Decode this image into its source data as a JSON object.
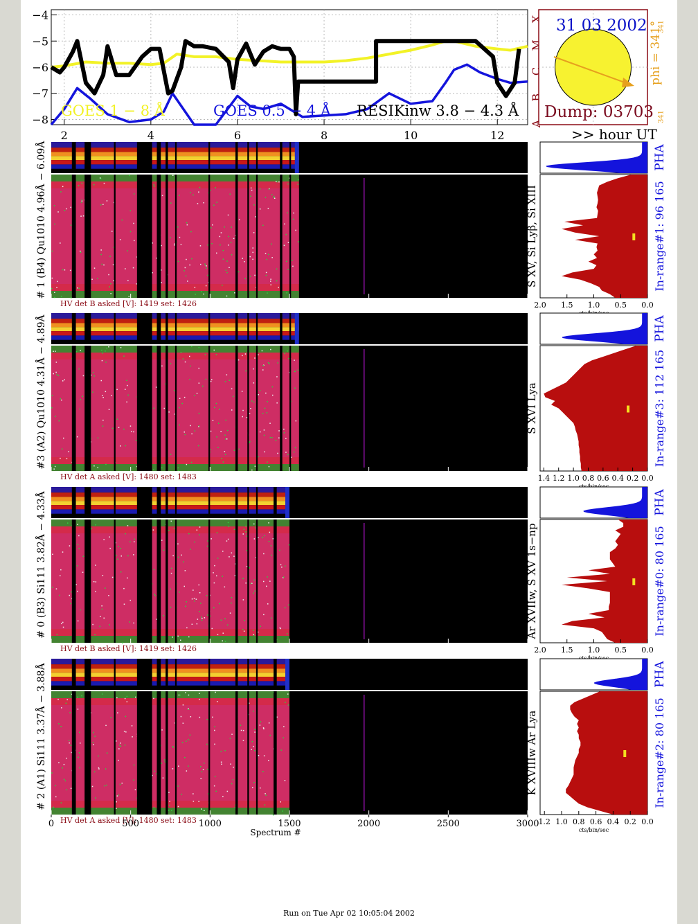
{
  "goes": {
    "date": "31 03 2002",
    "dump": "Dump: 03703",
    "phi": "phi = 341°",
    "phi_small": "341",
    "phi_small2": "341",
    "legend_long": "GOES 1 − 8 Å",
    "legend_short": "GOES 0.5 − 4 Å",
    "legend_resik": "RESIKinw 3.8 − 4.3 Å",
    "hour_label": ">> hour UT",
    "flare_classes": [
      "A",
      "B",
      "C",
      "M",
      "X"
    ],
    "colors": {
      "long": "#f2f226",
      "short": "#1414dc",
      "resik": "#000000",
      "date": "#0a12c8",
      "dump": "#7a0a1e",
      "phi": "#e6a01e",
      "class": "#8a0a14"
    }
  },
  "chart_data": [
    {
      "type": "line",
      "title": "",
      "xlabel": ">> hour UT",
      "ylabel": "",
      "xlim": [
        1.7,
        12.7
      ],
      "ylim": [
        -8.2,
        -3.8
      ],
      "xticks": [
        2,
        4,
        6,
        8,
        10,
        12
      ],
      "yticks": [
        -4,
        -5,
        -6,
        -7,
        -8
      ],
      "series": [
        {
          "name": "GOES 1 − 8 Å",
          "color": "#f2f226",
          "x": [
            1.7,
            2.0,
            2.5,
            3.0,
            3.5,
            4.0,
            4.3,
            4.6,
            5.0,
            5.5,
            6.0,
            6.5,
            7.0,
            7.5,
            8.0,
            8.5,
            9.0,
            9.5,
            10.0,
            10.5,
            10.8,
            11.0,
            11.5,
            12.0,
            12.3,
            12.7
          ],
          "y": [
            -6.0,
            -5.95,
            -5.8,
            -5.85,
            -5.85,
            -5.9,
            -5.85,
            -5.5,
            -5.6,
            -5.6,
            -5.7,
            -5.75,
            -5.8,
            -5.8,
            -5.8,
            -5.75,
            -5.65,
            -5.5,
            -5.35,
            -5.15,
            -5.0,
            -5.0,
            -5.2,
            -5.3,
            -5.35,
            -5.2
          ]
        },
        {
          "name": "GOES 0.5 − 4 Å",
          "color": "#1414dc",
          "x": [
            1.7,
            2.0,
            2.3,
            2.6,
            3.0,
            3.5,
            4.0,
            4.3,
            4.5,
            5.0,
            5.5,
            6.0,
            6.3,
            6.6,
            7.0,
            7.5,
            8.0,
            8.5,
            9.0,
            9.5,
            10.0,
            10.5,
            10.8,
            11.0,
            11.3,
            11.6,
            12.0,
            12.3,
            12.7
          ],
          "y": [
            -8.2,
            -7.6,
            -6.8,
            -7.2,
            -7.8,
            -8.1,
            -8.0,
            -7.7,
            -7.0,
            -8.2,
            -8.2,
            -7.1,
            -7.5,
            -7.6,
            -7.4,
            -7.9,
            -7.85,
            -7.8,
            -7.6,
            -7.0,
            -7.4,
            -7.3,
            -6.6,
            -6.1,
            -5.9,
            -6.2,
            -6.45,
            -6.6,
            -6.55
          ]
        },
        {
          "name": "RESIKinw 3.8 − 4.3 Å",
          "color": "#000000",
          "x": [
            1.7,
            1.9,
            2.0,
            2.2,
            2.3,
            2.5,
            2.7,
            2.9,
            3.0,
            3.2,
            3.5,
            3.8,
            4.0,
            4.2,
            4.4,
            4.5,
            4.7,
            4.8,
            5.0,
            5.2,
            5.5,
            5.8,
            5.9,
            6.0,
            6.2,
            6.4,
            6.6,
            6.8,
            7.0,
            7.2,
            7.3,
            7.35,
            7.4,
            9.2,
            9.2,
            11.0,
            11.5,
            11.7,
            11.9,
            12.0,
            12.2,
            12.4,
            12.5
          ],
          "y": [
            -6.0,
            -6.2,
            -6.0,
            -5.4,
            -5.0,
            -6.6,
            -7.0,
            -6.3,
            -5.2,
            -6.3,
            -6.3,
            -5.6,
            -5.3,
            -5.3,
            -7.0,
            -6.9,
            -6.0,
            -5.0,
            -5.2,
            -5.2,
            -5.3,
            -5.8,
            -6.8,
            -5.7,
            -5.1,
            -5.9,
            -5.4,
            -5.2,
            -5.3,
            -5.3,
            -5.6,
            -7.8,
            -6.55,
            -6.55,
            -5.0,
            -5.0,
            -5.0,
            -5.3,
            -5.6,
            -6.6,
            -7.1,
            -6.6,
            -5.3
          ]
        }
      ]
    },
    {
      "type": "heatmap",
      "title": "# 1 (B4) Qu1010 4.96Å − 6.09Å",
      "xlim": [
        0,
        3000
      ],
      "data_end_spectrum": 1560,
      "gaps": [
        [
          130,
          155
        ],
        [
          210,
          250
        ],
        [
          395,
          405
        ],
        [
          540,
          635
        ],
        [
          665,
          690
        ],
        [
          720,
          735
        ],
        [
          780,
          790
        ],
        [
          990,
          1000
        ],
        [
          1160,
          1175
        ],
        [
          1235,
          1245
        ],
        [
          1290,
          1300
        ],
        [
          1440,
          1455
        ],
        [
          1500,
          1510
        ]
      ],
      "pha_label": "PHA",
      "spectrum_label": "S XV,  Si Lyβ, Si XIII",
      "in_range": "In-range#1:   96 165",
      "hv": "HV det B asked [V]:  1419 set:  1426",
      "pha_xticks": [
        "2.0",
        "1.5",
        "1.0",
        "0.5",
        "0.0"
      ],
      "pha_xmax": 2.0,
      "hist_xlabel": "cts/bin/sec",
      "pha_peak": 0.9,
      "profile": [
        0.3,
        0.55,
        0.75,
        0.9,
        0.92,
        0.94,
        0.93,
        0.92,
        0.93,
        0.95,
        0.92,
        0.93,
        0.94,
        1.55,
        1.2,
        1.6,
        1.35,
        0.9,
        1.35,
        0.93,
        0.95,
        0.93,
        1.0,
        0.94,
        1.1,
        0.95,
        1.0,
        1.4,
        1.6,
        1.25,
        1.05,
        0.9,
        0.85,
        0.7,
        0.6
      ]
    },
    {
      "type": "heatmap",
      "title": "#3 (A2) Qu1010  4.31Å − 4.89Å",
      "xlim": [
        0,
        3000
      ],
      "data_end_spectrum": 1560,
      "gaps": [
        [
          130,
          155
        ],
        [
          210,
          250
        ],
        [
          395,
          405
        ],
        [
          540,
          635
        ],
        [
          665,
          690
        ],
        [
          720,
          735
        ],
        [
          780,
          790
        ],
        [
          990,
          1000
        ],
        [
          1160,
          1175
        ],
        [
          1235,
          1245
        ],
        [
          1290,
          1300
        ],
        [
          1440,
          1455
        ],
        [
          1500,
          1510
        ]
      ],
      "pha_label": "PHA",
      "spectrum_label": "S XVI Lya",
      "in_range": "In-range#3:   112 165",
      "hv": "HV det A asked [V]:  1480 set:  1483",
      "pha_xticks": [
        "1.4",
        "1.2",
        "1.0",
        "0.8",
        "0.6",
        "0.4",
        "0.2",
        "0.0"
      ],
      "pha_xmax": 1.45,
      "hist_xlabel": "cts/bin/sec",
      "pha_peak": 0.75,
      "profile": [
        0.15,
        0.3,
        0.45,
        0.6,
        0.75,
        0.85,
        0.9,
        0.95,
        1.0,
        1.05,
        1.1,
        1.2,
        1.3,
        1.4,
        1.38,
        1.25,
        1.3,
        1.2,
        1.15,
        1.1,
        1.05,
        1.0,
        0.98,
        0.97,
        0.95,
        0.94,
        0.93,
        0.93,
        0.92,
        0.92,
        0.91,
        0.91,
        0.9,
        0.9,
        0.89
      ]
    },
    {
      "type": "heatmap",
      "title": "# 0 (B3) Si111  3.82Å − 4.33Å",
      "xlim": [
        0,
        3000
      ],
      "data_end_spectrum": 1500,
      "gaps": [
        [
          130,
          155
        ],
        [
          210,
          250
        ],
        [
          395,
          405
        ],
        [
          540,
          635
        ],
        [
          665,
          690
        ],
        [
          720,
          735
        ],
        [
          780,
          790
        ],
        [
          990,
          1000
        ],
        [
          1160,
          1175
        ],
        [
          1235,
          1245
        ],
        [
          1290,
          1300
        ],
        [
          1400,
          1420
        ]
      ],
      "pha_label": "PHA",
      "spectrum_label": "Ar XVIIw,  S XV  1s−np",
      "in_range": "In-range#0:   80 165",
      "hv": "HV det B asked [V]:  1419 set:  1426",
      "pha_xticks": [
        "2.0",
        "1.5",
        "1.0",
        "0.5",
        "0.0"
      ],
      "pha_xmax": 2.0,
      "hist_xlabel": "cts/bin/sec",
      "pha_peak": 0.55,
      "profile": [
        0.55,
        0.45,
        0.45,
        0.6,
        0.5,
        0.55,
        0.6,
        0.55,
        0.6,
        0.7,
        0.7,
        0.7,
        0.65,
        0.6,
        1.1,
        0.7,
        1.5,
        0.75,
        1.6,
        1.1,
        0.7,
        0.7,
        0.7,
        0.7,
        0.72,
        0.72,
        1.1,
        0.8,
        1.4,
        1.6,
        1.0,
        0.85,
        0.8,
        0.75,
        0.6
      ]
    },
    {
      "type": "heatmap",
      "title": "# 2 (A1) Si111  3.37Å − 3.88Å",
      "xlim": [
        0,
        3000
      ],
      "data_end_spectrum": 1500,
      "gaps": [
        [
          130,
          155
        ],
        [
          210,
          250
        ],
        [
          395,
          405
        ],
        [
          540,
          635
        ],
        [
          665,
          690
        ],
        [
          720,
          735
        ],
        [
          780,
          790
        ],
        [
          990,
          1000
        ],
        [
          1160,
          1175
        ],
        [
          1235,
          1245
        ],
        [
          1290,
          1300
        ],
        [
          1400,
          1420
        ]
      ],
      "pha_label": "PHA",
      "spectrum_label": "K XVIIIw  Ar Lya",
      "in_range": "In-range#2:   80 165",
      "hv": "HV det A asked [V]:  1480 set:  1483",
      "pha_xticks": [
        "1.2",
        "1.0",
        "0.8",
        "0.6",
        "0.4",
        "0.2",
        "0.0"
      ],
      "pha_xmax": 1.25,
      "hist_xlabel": "cts/bin/sec",
      "pha_peak": 0.45,
      "profile": [
        0.55,
        0.65,
        0.75,
        0.85,
        0.9,
        0.9,
        0.88,
        0.85,
        0.8,
        0.82,
        0.8,
        0.82,
        0.8,
        0.8,
        0.78,
        0.78,
        0.8,
        0.8,
        0.82,
        0.84,
        0.85,
        0.86,
        0.86,
        0.86,
        0.88,
        0.9,
        0.92,
        0.95,
        0.95,
        0.9,
        0.85,
        0.8,
        0.7,
        0.55,
        0.4
      ]
    }
  ],
  "xaxis": {
    "ticks": [
      "0",
      "500",
      "1000",
      "1500",
      "2000",
      "2500",
      "3000"
    ],
    "title": "Spectrum #"
  },
  "footer": "Run on Tue Apr 02 10:05:04 2002"
}
